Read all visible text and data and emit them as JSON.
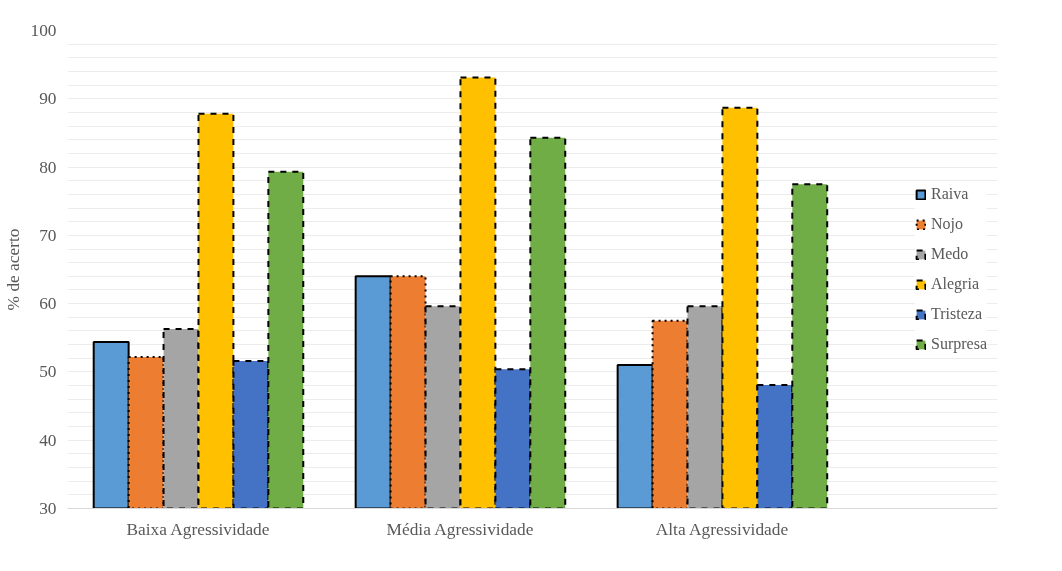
{
  "chart_data": {
    "type": "bar",
    "ylabel": "% de acerto",
    "categories": [
      "Baixa Agressividade",
      "Média Agressividade",
      "Alta Agressividade"
    ],
    "series": [
      {
        "name": "Raiva",
        "color": "#5b9bd5",
        "line_style": "solid",
        "values": [
          54.4,
          64.0,
          51.0
        ]
      },
      {
        "name": "Nojo",
        "color": "#ed7d31",
        "line_style": "dotted",
        "values": [
          52.2,
          64.0,
          57.5
        ]
      },
      {
        "name": "Medo",
        "color": "#a5a5a5",
        "line_style": "dashed",
        "values": [
          56.3,
          59.6,
          59.6
        ]
      },
      {
        "name": "Alegria",
        "color": "#ffc000",
        "line_style": "dashed",
        "values": [
          87.8,
          93.1,
          88.7
        ]
      },
      {
        "name": "Tristeza",
        "color": "#4472c4",
        "line_style": "dashed",
        "values": [
          51.6,
          50.4,
          48.1
        ]
      },
      {
        "name": "Surpresa",
        "color": "#70ad47",
        "line_style": "dashed",
        "values": [
          79.3,
          84.3,
          77.5
        ]
      }
    ],
    "ylim": [
      30,
      100
    ],
    "yticks": [
      30,
      40,
      50,
      60,
      70,
      80,
      90,
      100
    ],
    "grid": "y",
    "legend": "right"
  }
}
